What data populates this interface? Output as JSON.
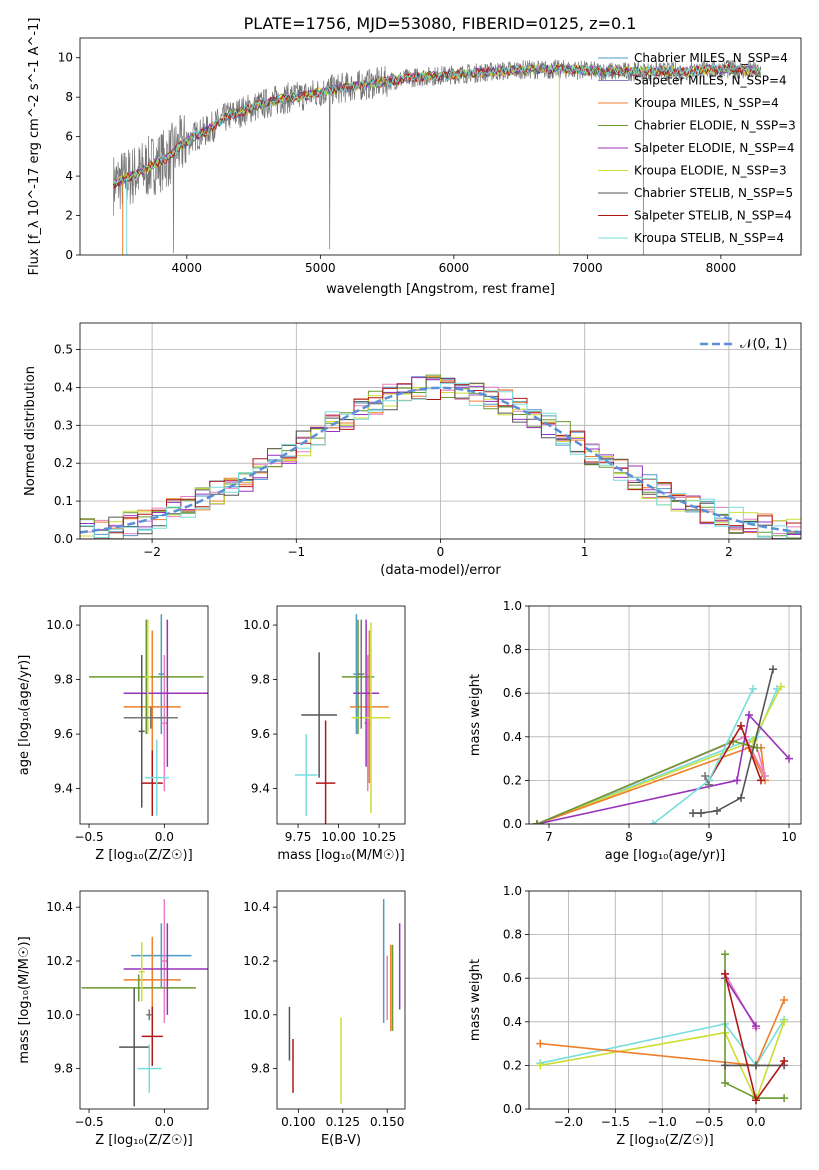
{
  "figure_title": "PLATE=1756, MJD=53080, FIBERID=0125, z=0.1",
  "colors": {
    "grey": "#777777",
    "gridline": "#b0b0b0",
    "chabrier_miles": "#4e9ac8",
    "salpeter_miles": "#8e7cc3",
    "kroupa_miles": "#ee7f2c",
    "chabrier_elodie": "#6b9a2f",
    "salpeter_elodie": "#9933bb",
    "kroupa_elodie": "#ccdd33",
    "chabrier_stelib": "#555555",
    "salpeter_stelib": "#b01818",
    "kroupa_stelib": "#77dddd",
    "gaussian": "#5b8fd8",
    "pink": "#e67fbf"
  },
  "chart_data": [
    {
      "id": "spectrum",
      "type": "line",
      "title": "PLATE=1756, MJD=53080, FIBERID=0125, z=0.1",
      "xlabel": "wavelength [Angstrom, rest frame]",
      "ylabel": "Flux [f_λ 10^-17 erg cm^-2 s^-1 A^-1]",
      "xlim": [
        3200,
        8600
      ],
      "ylim": [
        0,
        11
      ],
      "xticks": [
        4000,
        5000,
        6000,
        7000,
        8000
      ],
      "yticks": [
        0,
        2,
        4,
        6,
        8,
        10
      ],
      "legend_position": "top-right",
      "continuum_model": {
        "x": [
          3450,
          3550,
          3650,
          3750,
          3850,
          3950,
          4050,
          4150,
          4300,
          4500,
          4700,
          4900,
          5100,
          5300,
          5500,
          5700,
          5900,
          6100,
          6300,
          6500,
          6700,
          6900,
          7100,
          7300,
          7500,
          7700,
          7900,
          8100,
          8300
        ],
        "y": [
          3.6,
          3.9,
          4.2,
          4.6,
          4.9,
          5.5,
          6.0,
          6.3,
          7.0,
          7.5,
          7.9,
          8.1,
          8.4,
          8.6,
          8.8,
          9.0,
          9.1,
          9.2,
          9.3,
          9.4,
          9.4,
          9.4,
          9.3,
          9.3,
          9.3,
          9.3,
          9.4,
          9.4,
          9.3
        ]
      },
      "series": [
        {
          "name": "Chabrier MILES",
          "nssp": "N_SSP=4"
        },
        {
          "name": "Salpeter MILES",
          "nssp": "N_SSP=4"
        },
        {
          "name": "Kroupa MILES",
          "nssp": "N_SSP=4"
        },
        {
          "name": "Chabrier ELODIE",
          "nssp": "N_SSP=3"
        },
        {
          "name": "Salpeter ELODIE",
          "nssp": "N_SSP=4"
        },
        {
          "name": "Kroupa ELODIE",
          "nssp": "N_SSP=3"
        },
        {
          "name": "Chabrier STELIB",
          "nssp": "N_SSP=5"
        },
        {
          "name": "Salpeter STELIB",
          "nssp": "N_SSP=4"
        },
        {
          "name": "Kroupa STELIB",
          "nssp": "N_SSP=4"
        }
      ]
    },
    {
      "id": "residuals",
      "type": "area",
      "xlabel": "(data-model)/error",
      "ylabel": "Normed distribution",
      "xlim": [
        -2.5,
        2.5
      ],
      "ylim": [
        0,
        0.57
      ],
      "xticks": [
        -2,
        -1,
        0,
        1,
        2
      ],
      "yticks": [
        0.0,
        0.1,
        0.2,
        0.3,
        0.4,
        0.5
      ],
      "grid": true,
      "legend_position": "top-right",
      "legend_label": "𝒩(0, 1)",
      "bin_width": 0.1
    },
    {
      "id": "age_vs_Z",
      "type": "scatter",
      "xlabel": "Z [log₁₀(Z/Z☉)]",
      "ylabel": "age  [log₁₀(age/yr)]",
      "xlim": [
        -0.56,
        0.29
      ],
      "ylim": [
        9.27,
        10.07
      ],
      "xticks": [
        -0.5,
        0.0
      ],
      "yticks": [
        9.4,
        9.6,
        9.8,
        10.0
      ],
      "points": [
        {
          "x": -0.02,
          "y": 9.82,
          "xerr": 0.02,
          "yerr": 0.22
        },
        {
          "x": 0.0,
          "y": 9.64,
          "xerr": 0.02,
          "yerr": 0.25
        },
        {
          "x": -0.08,
          "y": 9.7,
          "xerr": 0.19,
          "yerr": 0.28
        },
        {
          "x": -0.12,
          "y": 9.81,
          "xerr": 0.38,
          "yerr": 0.21
        },
        {
          "x": 0.02,
          "y": 9.75,
          "xerr": 0.29,
          "yerr": 0.27
        },
        {
          "x": -0.11,
          "y": 9.81,
          "xerr": 0.02,
          "yerr": 0.21
        },
        {
          "x": -0.15,
          "y": 9.61,
          "xerr": 0.02,
          "yerr": 0.28
        },
        {
          "x": -0.08,
          "y": 9.42,
          "xerr": 0.07,
          "yerr": 0.12
        },
        {
          "x": -0.05,
          "y": 9.44,
          "xerr": 0.08,
          "yerr": 0.14
        },
        {
          "x": -0.09,
          "y": 9.66,
          "xerr": 0.18,
          "yerr": 0.04
        }
      ]
    },
    {
      "id": "age_vs_mass",
      "type": "scatter",
      "xlabel": "mass [log₁₀(M/M☉)]",
      "ylabel": "",
      "xlim": [
        9.62,
        10.41
      ],
      "ylim": [
        9.27,
        10.07
      ],
      "xticks": [
        9.75,
        10.0,
        10.25
      ],
      "yticks": [
        9.4,
        9.6,
        9.8,
        10.0
      ],
      "points": [
        {
          "x": 10.11,
          "y": 9.82,
          "xerr": 0.02,
          "yerr": 0.22
        },
        {
          "x": 10.18,
          "y": 9.64,
          "xerr": 0.02,
          "yerr": 0.25
        },
        {
          "x": 10.19,
          "y": 9.7,
          "xerr": 0.12,
          "yerr": 0.28
        },
        {
          "x": 10.12,
          "y": 9.81,
          "xerr": 0.1,
          "yerr": 0.21
        },
        {
          "x": 10.17,
          "y": 9.75,
          "xerr": 0.08,
          "yerr": 0.27
        },
        {
          "x": 10.2,
          "y": 9.66,
          "xerr": 0.12,
          "yerr": 0.35
        },
        {
          "x": 9.88,
          "y": 9.67,
          "xerr": 0.11,
          "yerr": 0.23
        },
        {
          "x": 9.92,
          "y": 9.42,
          "xerr": 0.06,
          "yerr": 0.23
        },
        {
          "x": 9.8,
          "y": 9.45,
          "xerr": 0.07,
          "yerr": 0.15
        },
        {
          "x": 10.14,
          "y": 9.82,
          "xerr": 0.02,
          "yerr": 0.2
        }
      ]
    },
    {
      "id": "mass_weight_vs_age",
      "type": "line",
      "xlabel": "age  [log₁₀(age/yr)]",
      "ylabel": "mass weight",
      "xlim": [
        6.75,
        10.15
      ],
      "ylim": [
        0,
        1.0
      ],
      "xticks": [
        7,
        8,
        9,
        10
      ],
      "yticks": [
        0.0,
        0.2,
        0.4,
        0.6,
        0.8,
        1.0
      ],
      "grid": true,
      "series": [
        {
          "x": [
            6.85,
            9.6,
            9.85
          ],
          "y": [
            0.0,
            0.4,
            0.62
          ]
        },
        {
          "x": [
            6.85,
            9.55,
            9.9
          ],
          "y": [
            0.0,
            0.38,
            0.63
          ]
        },
        {
          "x": [
            6.85,
            9.5,
            9.7,
            9.65
          ],
          "y": [
            0.0,
            0.35,
            0.2,
            0.35
          ]
        },
        {
          "x": [
            6.85,
            9.45,
            9.7,
            9.6
          ],
          "y": [
            0.0,
            0.4,
            0.22,
            0.35
          ]
        },
        {
          "x": [
            6.85,
            9.35,
            9.5,
            10.0
          ],
          "y": [
            0.0,
            0.2,
            0.5,
            0.3
          ]
        },
        {
          "x": [
            6.85,
            9.3,
            9.6
          ],
          "y": [
            0.0,
            0.38,
            0.35
          ]
        },
        {
          "x": [
            8.8,
            8.9,
            9.1,
            9.4,
            9.8
          ],
          "y": [
            0.05,
            0.05,
            0.06,
            0.12,
            0.71
          ]
        },
        {
          "x": [
            9.0,
            9.4,
            9.65
          ],
          "y": [
            0.2,
            0.45,
            0.2
          ]
        },
        {
          "x": [
            8.3,
            9.0,
            9.55
          ],
          "y": [
            0.0,
            0.2,
            0.62
          ]
        },
        {
          "x": [
            8.95,
            9.0
          ],
          "y": [
            0.22,
            0.18
          ]
        }
      ]
    },
    {
      "id": "mass_vs_Z",
      "type": "scatter",
      "xlabel": "Z [log₁₀(Z/Z☉)]",
      "ylabel": "mass [log₁₀(M/M☉)]",
      "xlim": [
        -0.56,
        0.29
      ],
      "ylim": [
        9.65,
        10.46
      ],
      "xticks": [
        -0.5,
        0.0
      ],
      "yticks": [
        9.8,
        10.0,
        10.2,
        10.4
      ],
      "points": [
        {
          "x": -0.02,
          "y": 10.22,
          "xerr": 0.2,
          "yerr": 0.12
        },
        {
          "x": 0.0,
          "y": 10.2,
          "xerr": 0.02,
          "yerr": 0.23
        },
        {
          "x": -0.08,
          "y": 10.13,
          "xerr": 0.19,
          "yerr": 0.16
        },
        {
          "x": -0.17,
          "y": 10.1,
          "xerr": 0.38,
          "yerr": 0.05
        },
        {
          "x": 0.02,
          "y": 10.17,
          "xerr": 0.29,
          "yerr": 0.17
        },
        {
          "x": -0.15,
          "y": 10.16,
          "xerr": 0.02,
          "yerr": 0.11
        },
        {
          "x": -0.2,
          "y": 9.88,
          "xerr": 0.1,
          "yerr": 0.22
        },
        {
          "x": -0.08,
          "y": 9.92,
          "xerr": 0.07,
          "yerr": 0.11
        },
        {
          "x": -0.1,
          "y": 9.8,
          "xerr": 0.08,
          "yerr": 0.09
        },
        {
          "x": -0.1,
          "y": 10.0,
          "xerr": 0.02,
          "yerr": 0.02
        }
      ]
    },
    {
      "id": "mass_vs_ebv",
      "type": "scatter",
      "xlabel": "E(B-V)",
      "ylabel": "",
      "xlim": [
        0.088,
        0.16
      ],
      "ylim": [
        9.65,
        10.46
      ],
      "xticks": [
        0.1,
        0.125,
        0.15
      ],
      "yticks": [
        9.8,
        10.0,
        10.2,
        10.4
      ],
      "points": [
        {
          "x": 0.148,
          "y": 10.2,
          "yerr": 0.23
        },
        {
          "x": 0.15,
          "y": 10.1,
          "yerr": 0.12
        },
        {
          "x": 0.152,
          "y": 10.1,
          "yerr": 0.16
        },
        {
          "x": 0.153,
          "y": 10.1,
          "yerr": 0.16
        },
        {
          "x": 0.157,
          "y": 10.18,
          "yerr": 0.16
        },
        {
          "x": 0.124,
          "y": 9.83,
          "yerr": 0.16
        },
        {
          "x": 0.095,
          "y": 9.93,
          "yerr": 0.1
        },
        {
          "x": 0.097,
          "y": 9.81,
          "yerr": 0.1
        }
      ]
    },
    {
      "id": "mass_weight_vs_Z",
      "type": "line",
      "xlabel": "Z [log₁₀(Z/Z☉)]",
      "ylabel": "mass weight",
      "xlim": [
        -2.42,
        0.48
      ],
      "ylim": [
        0,
        1.0
      ],
      "xticks": [
        -2.0,
        -1.5,
        -1.0,
        -0.5,
        0.0
      ],
      "yticks": [
        0.0,
        0.2,
        0.4,
        0.6,
        0.8,
        1.0
      ],
      "grid": true,
      "series": [
        {
          "x": [
            -2.3,
            -0.33,
            0.0,
            0.3
          ],
          "y": [
            0.21,
            0.39,
            0.2,
            0.41
          ]
        },
        {
          "x": [
            -2.3,
            -0.33,
            0.0,
            0.3
          ],
          "y": [
            0.2,
            0.35,
            0.04,
            0.4
          ]
        },
        {
          "x": [
            -2.3,
            0.0,
            0.3
          ],
          "y": [
            0.3,
            0.2,
            0.5
          ]
        },
        {
          "x": [
            -0.33,
            0.0
          ],
          "y": [
            0.62,
            0.37
          ]
        },
        {
          "x": [
            -0.33,
            0.0
          ],
          "y": [
            0.6,
            0.38
          ]
        },
        {
          "x": [
            -0.33,
            -0.33,
            0.0,
            0.3
          ],
          "y": [
            0.71,
            0.12,
            0.05,
            0.05
          ]
        },
        {
          "x": [
            -0.33,
            0.0,
            0.3
          ],
          "y": [
            0.2,
            0.2,
            0.2
          ]
        },
        {
          "x": [
            -0.33,
            0.0,
            0.3
          ],
          "y": [
            0.62,
            0.04,
            0.22
          ]
        }
      ]
    }
  ]
}
